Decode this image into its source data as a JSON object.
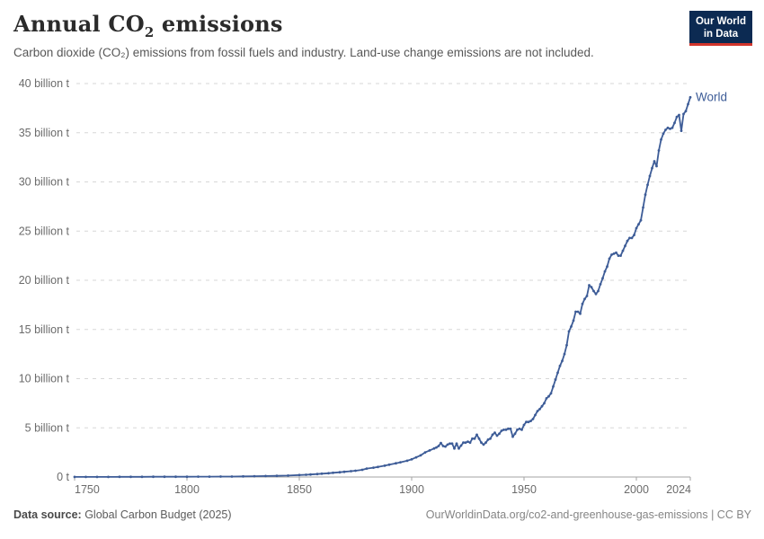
{
  "header": {
    "title_main": "Annual CO",
    "title_sub": "2",
    "title_tail": " emissions",
    "subtitle": "Carbon dioxide (CO₂) emissions from fossil fuels and industry. Land-use change emissions are not included.",
    "logo": {
      "line1": "Our World",
      "line2": "in Data"
    }
  },
  "footer": {
    "source_label": "Data source:",
    "source_value": " Global Carbon Budget (2025)",
    "credit": "OurWorldinData.org/co2-and-greenhouse-gas-emissions | CC BY"
  },
  "colors": {
    "series_blue": "#3d5c97",
    "grid": "#d7d7d7",
    "axis": "#a3a3a3",
    "tick_text": "#6b6b6b",
    "title_text": "#2b2b2b",
    "logo_navy": "#0c2a52",
    "logo_red": "#d2352b"
  },
  "chart_data": {
    "type": "line",
    "title": "Annual CO₂ emissions",
    "unit": "billion tonnes (Gt CO₂)",
    "xlim": [
      1750,
      2024
    ],
    "ylim": [
      0,
      40
    ],
    "grid": "horizontal-dashed",
    "legend_position": "inline-right",
    "x_ticks": [
      {
        "year": 1750,
        "label": "1750"
      },
      {
        "year": 1800,
        "label": "1800"
      },
      {
        "year": 1850,
        "label": "1850"
      },
      {
        "year": 1900,
        "label": "1900"
      },
      {
        "year": 1950,
        "label": "1950"
      },
      {
        "year": 2000,
        "label": "2000"
      },
      {
        "year": 2024,
        "label": "2024"
      }
    ],
    "y_ticks": [
      {
        "value": 0,
        "label": "0 t"
      },
      {
        "value": 5,
        "label": "5 billion t"
      },
      {
        "value": 10,
        "label": "10 billion t"
      },
      {
        "value": 15,
        "label": "15 billion t"
      },
      {
        "value": 20,
        "label": "20 billion t"
      },
      {
        "value": 25,
        "label": "25 billion t"
      },
      {
        "value": 30,
        "label": "30 billion t"
      },
      {
        "value": 35,
        "label": "35 billion t"
      },
      {
        "value": 40,
        "label": "40 billion t"
      }
    ],
    "series": [
      {
        "name": "World",
        "color": "#3d5c97",
        "points": [
          [
            1750,
            0.01
          ],
          [
            1755,
            0.01
          ],
          [
            1760,
            0.01
          ],
          [
            1765,
            0.01
          ],
          [
            1770,
            0.02
          ],
          [
            1775,
            0.02
          ],
          [
            1780,
            0.02
          ],
          [
            1785,
            0.03
          ],
          [
            1790,
            0.03
          ],
          [
            1795,
            0.03
          ],
          [
            1800,
            0.03
          ],
          [
            1805,
            0.04
          ],
          [
            1810,
            0.04
          ],
          [
            1815,
            0.05
          ],
          [
            1820,
            0.05
          ],
          [
            1825,
            0.06
          ],
          [
            1830,
            0.08
          ],
          [
            1835,
            0.1
          ],
          [
            1840,
            0.12
          ],
          [
            1845,
            0.15
          ],
          [
            1850,
            0.2
          ],
          [
            1853,
            0.23
          ],
          [
            1855,
            0.26
          ],
          [
            1858,
            0.3
          ],
          [
            1860,
            0.34
          ],
          [
            1863,
            0.38
          ],
          [
            1865,
            0.43
          ],
          [
            1868,
            0.48
          ],
          [
            1870,
            0.53
          ],
          [
            1873,
            0.59
          ],
          [
            1875,
            0.64
          ],
          [
            1878,
            0.73
          ],
          [
            1880,
            0.86
          ],
          [
            1883,
            0.95
          ],
          [
            1885,
            1.02
          ],
          [
            1888,
            1.15
          ],
          [
            1890,
            1.25
          ],
          [
            1893,
            1.4
          ],
          [
            1895,
            1.5
          ],
          [
            1898,
            1.65
          ],
          [
            1900,
            1.8
          ],
          [
            1902,
            2.0
          ],
          [
            1904,
            2.2
          ],
          [
            1906,
            2.5
          ],
          [
            1908,
            2.7
          ],
          [
            1910,
            2.9
          ],
          [
            1911,
            3.0
          ],
          [
            1912,
            3.15
          ],
          [
            1913,
            3.45
          ],
          [
            1914,
            3.15
          ],
          [
            1915,
            3.1
          ],
          [
            1916,
            3.3
          ],
          [
            1917,
            3.4
          ],
          [
            1918,
            3.4
          ],
          [
            1919,
            2.9
          ],
          [
            1920,
            3.4
          ],
          [
            1921,
            2.9
          ],
          [
            1922,
            3.2
          ],
          [
            1923,
            3.5
          ],
          [
            1924,
            3.5
          ],
          [
            1925,
            3.6
          ],
          [
            1926,
            3.5
          ],
          [
            1927,
            3.9
          ],
          [
            1928,
            3.9
          ],
          [
            1929,
            4.3
          ],
          [
            1930,
            3.9
          ],
          [
            1931,
            3.5
          ],
          [
            1932,
            3.3
          ],
          [
            1933,
            3.5
          ],
          [
            1934,
            3.8
          ],
          [
            1935,
            3.9
          ],
          [
            1936,
            4.3
          ],
          [
            1937,
            4.5
          ],
          [
            1938,
            4.2
          ],
          [
            1939,
            4.4
          ],
          [
            1940,
            4.7
          ],
          [
            1941,
            4.8
          ],
          [
            1942,
            4.8
          ],
          [
            1943,
            4.9
          ],
          [
            1944,
            4.9
          ],
          [
            1945,
            4.1
          ],
          [
            1946,
            4.4
          ],
          [
            1947,
            4.8
          ],
          [
            1948,
            4.9
          ],
          [
            1949,
            4.8
          ],
          [
            1950,
            5.3
          ],
          [
            1951,
            5.6
          ],
          [
            1952,
            5.6
          ],
          [
            1953,
            5.7
          ],
          [
            1954,
            5.9
          ],
          [
            1955,
            6.3
          ],
          [
            1956,
            6.7
          ],
          [
            1957,
            6.9
          ],
          [
            1958,
            7.2
          ],
          [
            1959,
            7.5
          ],
          [
            1960,
            8.0
          ],
          [
            1961,
            8.2
          ],
          [
            1962,
            8.5
          ],
          [
            1963,
            9.2
          ],
          [
            1964,
            9.9
          ],
          [
            1965,
            10.6
          ],
          [
            1966,
            11.3
          ],
          [
            1967,
            11.8
          ],
          [
            1968,
            12.5
          ],
          [
            1969,
            13.4
          ],
          [
            1970,
            14.8
          ],
          [
            1971,
            15.3
          ],
          [
            1972,
            15.9
          ],
          [
            1973,
            16.8
          ],
          [
            1974,
            16.8
          ],
          [
            1975,
            16.6
          ],
          [
            1976,
            17.6
          ],
          [
            1977,
            18.1
          ],
          [
            1978,
            18.4
          ],
          [
            1979,
            19.5
          ],
          [
            1980,
            19.3
          ],
          [
            1981,
            18.9
          ],
          [
            1982,
            18.6
          ],
          [
            1983,
            18.9
          ],
          [
            1984,
            19.6
          ],
          [
            1985,
            20.2
          ],
          [
            1986,
            20.9
          ],
          [
            1987,
            21.4
          ],
          [
            1988,
            22.2
          ],
          [
            1989,
            22.6
          ],
          [
            1990,
            22.7
          ],
          [
            1991,
            22.8
          ],
          [
            1992,
            22.5
          ],
          [
            1993,
            22.5
          ],
          [
            1994,
            23.0
          ],
          [
            1995,
            23.5
          ],
          [
            1996,
            24.0
          ],
          [
            1997,
            24.3
          ],
          [
            1998,
            24.3
          ],
          [
            1999,
            24.6
          ],
          [
            2000,
            25.3
          ],
          [
            2001,
            25.7
          ],
          [
            2002,
            26.1
          ],
          [
            2003,
            27.4
          ],
          [
            2004,
            28.7
          ],
          [
            2005,
            29.7
          ],
          [
            2006,
            30.6
          ],
          [
            2007,
            31.4
          ],
          [
            2008,
            32.1
          ],
          [
            2009,
            31.6
          ],
          [
            2010,
            33.2
          ],
          [
            2011,
            34.3
          ],
          [
            2012,
            34.9
          ],
          [
            2013,
            35.3
          ],
          [
            2014,
            35.5
          ],
          [
            2015,
            35.4
          ],
          [
            2016,
            35.5
          ],
          [
            2017,
            36.0
          ],
          [
            2018,
            36.6
          ],
          [
            2019,
            36.8
          ],
          [
            2020,
            35.2
          ],
          [
            2021,
            36.9
          ],
          [
            2022,
            37.2
          ],
          [
            2023,
            37.9
          ],
          [
            2024,
            38.6
          ]
        ]
      }
    ]
  }
}
